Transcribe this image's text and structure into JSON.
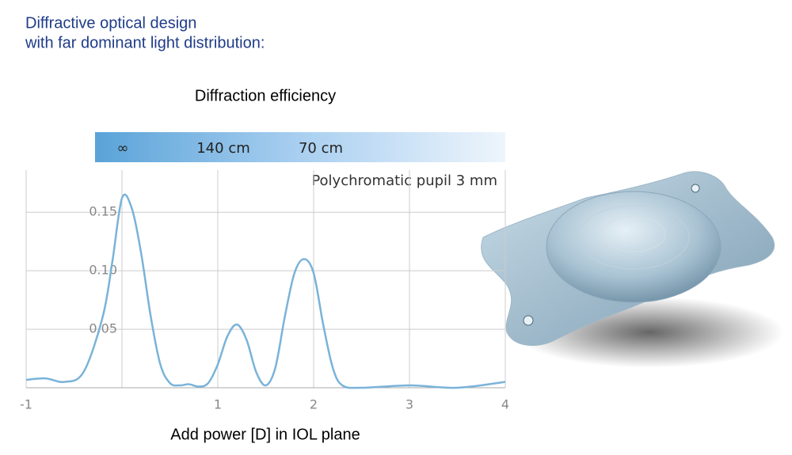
{
  "heading": [
    "Diffractive optical design",
    "with far dominant light distribution:"
  ],
  "chart_data": {
    "type": "line",
    "title": "Diffraction efficiency",
    "x_label": "Add power [D] in IOL plane",
    "annotation": "Polychromatic pupil 3 mm",
    "distance_labels": [
      "∞",
      "140 cm",
      "70 cm"
    ],
    "x": [
      -1,
      -0.8,
      -0.6,
      -0.4,
      -0.2,
      -0.1,
      0,
      0.1,
      0.2,
      0.3,
      0.4,
      0.5,
      0.6,
      0.7,
      0.8,
      0.9,
      1.0,
      1.1,
      1.2,
      1.3,
      1.4,
      1.5,
      1.6,
      1.7,
      1.8,
      1.9,
      2.0,
      2.1,
      2.2,
      2.3,
      2.5,
      3.0,
      3.5,
      4.0
    ],
    "values": [
      0.0068,
      0.008,
      0.005,
      0.0135,
      0.061,
      0.108,
      0.162,
      0.154,
      0.115,
      0.061,
      0.02,
      0.004,
      0.002,
      0.003,
      0.001,
      0.004,
      0.02,
      0.044,
      0.054,
      0.041,
      0.0135,
      0.002,
      0.017,
      0.061,
      0.098,
      0.11,
      0.098,
      0.054,
      0.017,
      0.002,
      0,
      0.002,
      0,
      0.005
    ],
    "color": "#7ab3d9",
    "xlim": [
      -1,
      4
    ],
    "ylim": [
      0,
      0.186
    ],
    "xticks": [
      -1,
      1,
      2,
      3,
      4
    ],
    "xgrid": [
      -1,
      0,
      1,
      2,
      3,
      4
    ],
    "yticks": [
      0.05,
      {
        "value": 0.1,
        "label": "0.10"
      },
      0.15
    ],
    "grid": true
  }
}
